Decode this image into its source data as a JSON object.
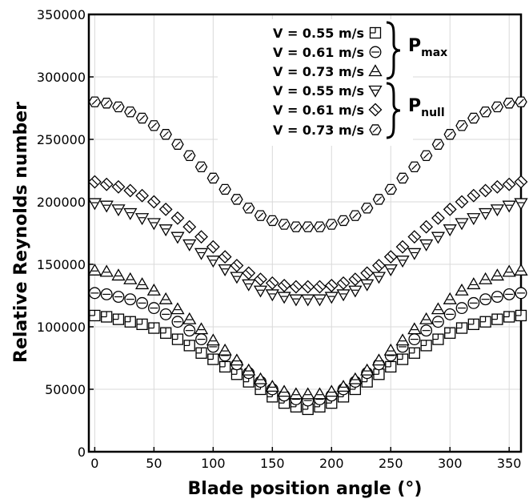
{
  "chart_data": {
    "type": "scatter",
    "xlabel": "Blade position angle (°)",
    "ylabel": "Relative Reynolds number",
    "xlim": [
      -5,
      360
    ],
    "ylim": [
      0,
      350000
    ],
    "xticks": [
      0,
      50,
      100,
      150,
      200,
      250,
      300,
      350
    ],
    "yticks": [
      0,
      50000,
      100000,
      150000,
      200000,
      250000,
      300000,
      350000
    ],
    "grid": true,
    "legend_position": "top-center",
    "legend_groups": [
      {
        "label": "P",
        "subscript": "max",
        "series": [
          0,
          1,
          2
        ]
      },
      {
        "label": "P",
        "subscript": "null",
        "series": [
          3,
          4,
          5
        ]
      }
    ],
    "x": [
      0,
      10,
      20,
      30,
      40,
      50,
      60,
      70,
      80,
      90,
      100,
      110,
      120,
      130,
      140,
      150,
      160,
      170,
      180,
      190,
      200,
      210,
      220,
      230,
      240,
      250,
      260,
      270,
      280,
      290,
      300,
      310,
      320,
      330,
      340,
      350,
      360
    ],
    "series": [
      {
        "name": "V = 0.55 m/s",
        "marker": "square-plus",
        "values": [
          109000,
          108000,
          106000,
          104000,
          102000,
          99000,
          95000,
          90000,
          85000,
          79000,
          74000,
          68000,
          62000,
          56000,
          50000,
          44000,
          39000,
          36000,
          34000,
          36000,
          39000,
          44000,
          50000,
          56000,
          62000,
          68000,
          74000,
          79000,
          85000,
          90000,
          95000,
          99000,
          102000,
          104000,
          106000,
          108000,
          109000
        ]
      },
      {
        "name": "V = 0.61 m/s",
        "marker": "circle-minus",
        "values": [
          127000,
          126000,
          124000,
          122000,
          119000,
          115000,
          110000,
          104000,
          97000,
          90000,
          84000,
          77000,
          70000,
          63000,
          56000,
          50000,
          45000,
          42000,
          41000,
          42000,
          45000,
          50000,
          56000,
          63000,
          70000,
          77000,
          84000,
          90000,
          97000,
          104000,
          110000,
          115000,
          119000,
          122000,
          124000,
          126000,
          127000
        ]
      },
      {
        "name": "V = 0.73 m/s",
        "marker": "triangle-up",
        "values": [
          145000,
          144000,
          141000,
          138000,
          134000,
          129000,
          122000,
          114000,
          106000,
          98000,
          89000,
          81000,
          73000,
          65000,
          58000,
          52000,
          48000,
          46000,
          46000,
          46000,
          48000,
          52000,
          58000,
          65000,
          73000,
          81000,
          89000,
          98000,
          106000,
          114000,
          122000,
          129000,
          134000,
          138000,
          141000,
          144000,
          145000
        ]
      },
      {
        "name": "V = 0.55 m/s",
        "marker": "triangle-down",
        "values": [
          199000,
          197000,
          194000,
          191000,
          187000,
          183000,
          178000,
          172000,
          166000,
          159000,
          153000,
          146000,
          140000,
          134000,
          129000,
          126000,
          124000,
          122000,
          122000,
          122000,
          124000,
          126000,
          129000,
          134000,
          140000,
          146000,
          153000,
          159000,
          166000,
          172000,
          178000,
          183000,
          187000,
          191000,
          194000,
          197000,
          199000
        ]
      },
      {
        "name": "V = 0.61 m/s",
        "marker": "diamond",
        "values": [
          216000,
          214000,
          212000,
          209000,
          205000,
          200000,
          194000,
          187000,
          180000,
          172000,
          164000,
          156000,
          149000,
          143000,
          138000,
          135000,
          133000,
          132000,
          132000,
          132000,
          133000,
          135000,
          138000,
          143000,
          149000,
          156000,
          164000,
          172000,
          180000,
          187000,
          194000,
          200000,
          205000,
          209000,
          212000,
          214000,
          216000
        ]
      },
      {
        "name": "V = 0.73 m/s",
        "marker": "hexagon",
        "values": [
          280000,
          279000,
          276000,
          272000,
          267000,
          261000,
          254000,
          246000,
          237000,
          228000,
          219000,
          210000,
          202000,
          195000,
          189000,
          185000,
          182000,
          180000,
          180000,
          180000,
          182000,
          185000,
          189000,
          195000,
          202000,
          210000,
          219000,
          228000,
          237000,
          246000,
          254000,
          261000,
          267000,
          272000,
          276000,
          279000,
          280000
        ]
      }
    ]
  }
}
